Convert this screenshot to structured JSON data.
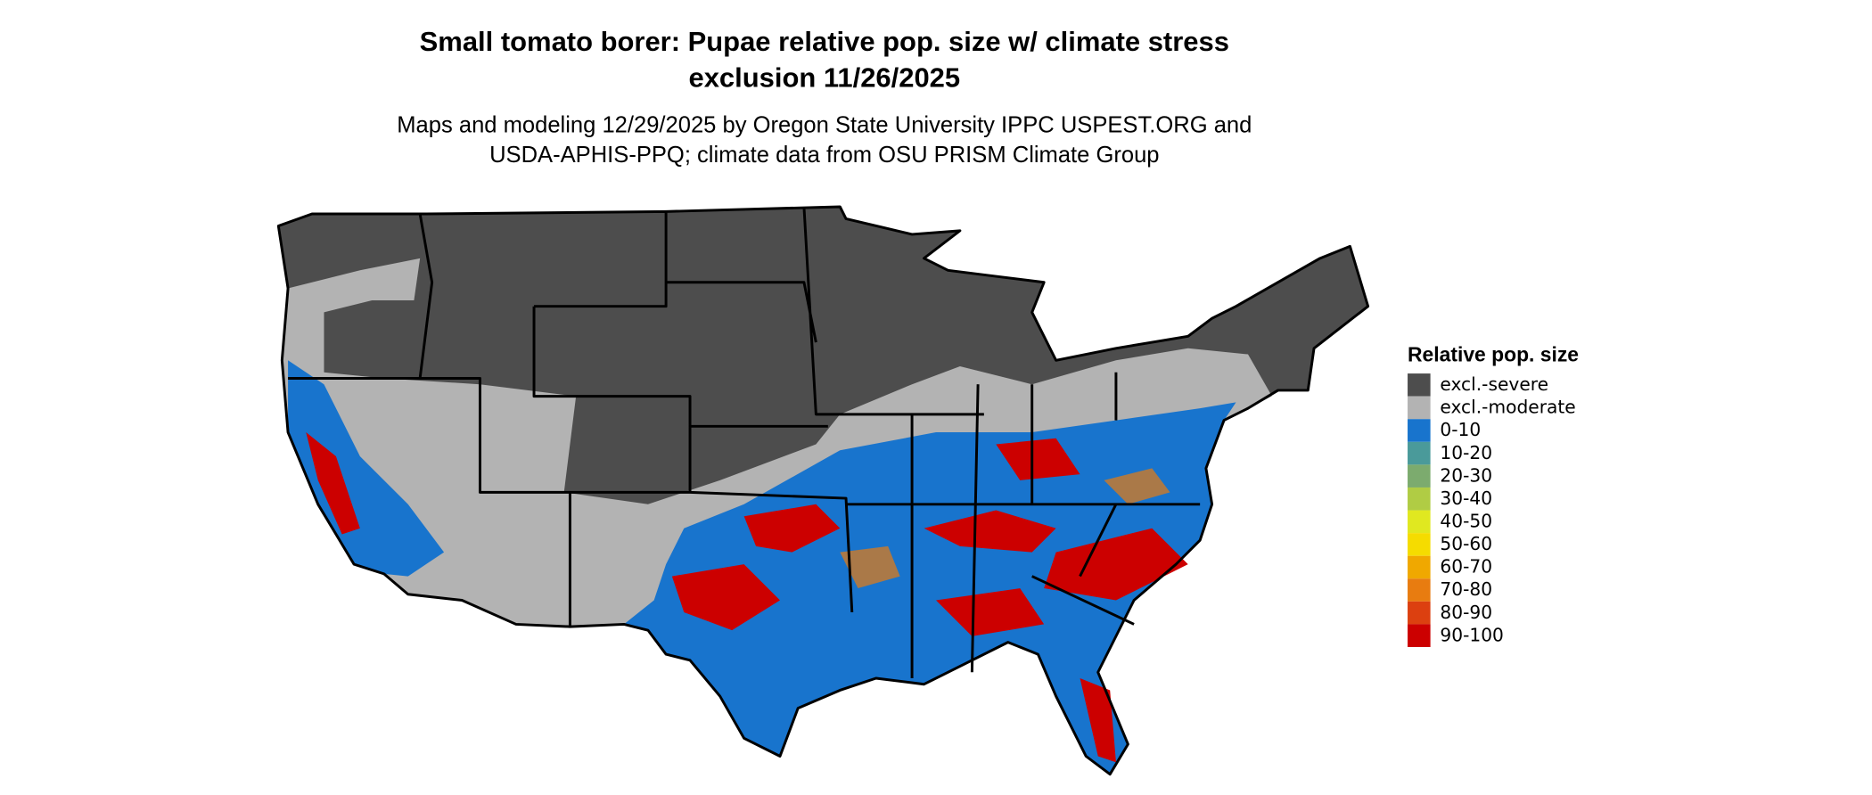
{
  "title_lines": [
    "Small tomato borer: Pupae relative pop. size w/ climate stress",
    "exclusion 11/26/2025"
  ],
  "subtitle_lines": [
    "Maps and modeling 12/29/2025 by Oregon State University IPPC USPEST.ORG and",
    "USDA-APHIS-PPQ; climate data from OSU PRISM Climate Group"
  ],
  "legend": {
    "title": "Relative pop. size",
    "items": [
      {
        "label": "excl.-severe",
        "color": "#4d4d4d"
      },
      {
        "label": "excl.-moderate",
        "color": "#b3b3b3"
      },
      {
        "label": "0-10",
        "color": "#1874cd"
      },
      {
        "label": "10-20",
        "color": "#4a9a9a"
      },
      {
        "label": "20-30",
        "color": "#7cab6e"
      },
      {
        "label": "30-40",
        "color": "#b0cc44"
      },
      {
        "label": "40-50",
        "color": "#e0e820"
      },
      {
        "label": "50-60",
        "color": "#f5dc00"
      },
      {
        "label": "60-70",
        "color": "#f0a800"
      },
      {
        "label": "70-80",
        "color": "#e87c10"
      },
      {
        "label": "80-90",
        "color": "#dc4010"
      },
      {
        "label": "90-100",
        "color": "#cc0000"
      }
    ]
  }
}
